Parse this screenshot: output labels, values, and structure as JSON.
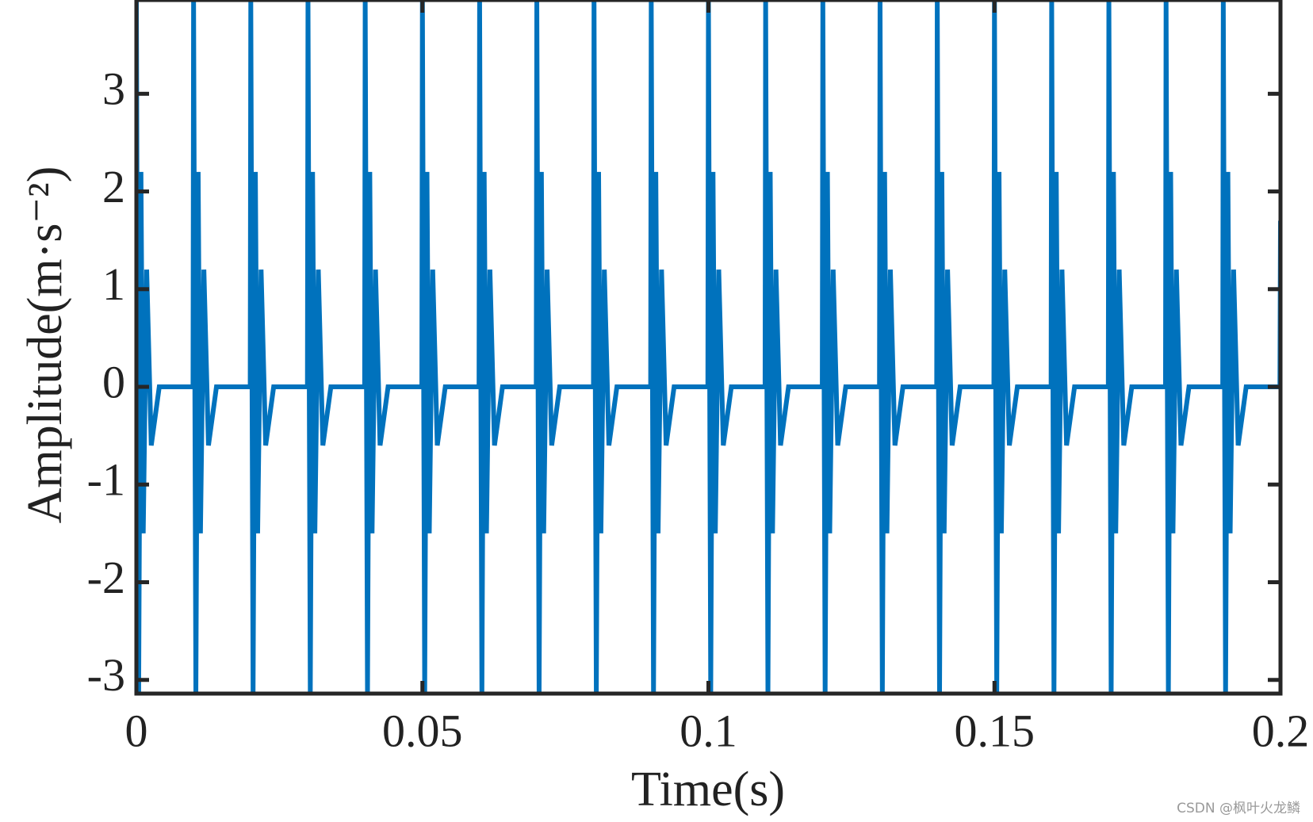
{
  "chart_data": {
    "type": "line",
    "x_label": "Time(s)",
    "y_label": "Amplitude(m·s⁻²)",
    "watermark": "CSDN @枫叶火龙鳞",
    "x": [
      0,
      0.0004,
      0.0008,
      0.0012,
      0.0018,
      0.0026,
      0.004,
      0.0099,
      0.01,
      0.0104,
      0.0108,
      0.0112,
      0.0118,
      0.0126,
      0.014,
      0.0199,
      0.02,
      0.0204,
      0.0208,
      0.0212,
      0.0218,
      0.0226,
      0.024,
      0.0299,
      0.03,
      0.0304,
      0.0308,
      0.0312,
      0.0318,
      0.0326,
      0.034,
      0.0399,
      0.04,
      0.0404,
      0.0408,
      0.0412,
      0.0418,
      0.0426,
      0.044,
      0.0499,
      0.05,
      0.0504,
      0.0508,
      0.0512,
      0.0518,
      0.0526,
      0.054,
      0.0599,
      0.06,
      0.0604,
      0.0608,
      0.0612,
      0.0618,
      0.0626,
      0.064,
      0.0699,
      0.07,
      0.0704,
      0.0708,
      0.0712,
      0.0718,
      0.0726,
      0.074,
      0.0799,
      0.08,
      0.0804,
      0.0808,
      0.0812,
      0.0818,
      0.0826,
      0.084,
      0.0899,
      0.09,
      0.0904,
      0.0908,
      0.0912,
      0.0918,
      0.0926,
      0.094,
      0.0999,
      0.1,
      0.1004,
      0.1008,
      0.1012,
      0.1018,
      0.1026,
      0.104,
      0.1099,
      0.11,
      0.1104,
      0.1108,
      0.1112,
      0.1118,
      0.1126,
      0.114,
      0.1199,
      0.12,
      0.1204,
      0.1208,
      0.1212,
      0.1218,
      0.1226,
      0.124,
      0.1299,
      0.13,
      0.1304,
      0.1308,
      0.1312,
      0.1318,
      0.1326,
      0.134,
      0.1399,
      0.14,
      0.1404,
      0.1408,
      0.1412,
      0.1418,
      0.1426,
      0.144,
      0.1499,
      0.15,
      0.1504,
      0.1508,
      0.1512,
      0.1518,
      0.1526,
      0.154,
      0.1599,
      0.16,
      0.1604,
      0.1608,
      0.1612,
      0.1618,
      0.1626,
      0.164,
      0.1699,
      0.17,
      0.1704,
      0.1708,
      0.1712,
      0.1718,
      0.1726,
      0.174,
      0.1799,
      0.18,
      0.1804,
      0.1808,
      0.1812,
      0.1818,
      0.1826,
      0.184,
      0.1899,
      0.19,
      0.1904,
      0.1908,
      0.1912,
      0.1918,
      0.1926,
      0.194,
      0.1999,
      0.2
    ],
    "series": [
      {
        "color": "#0072bd",
        "values": [
          3.96,
          -3.14,
          2.2,
          -1.5,
          1.2,
          -0.6,
          0,
          0,
          3.96,
          -3.14,
          2.2,
          -1.5,
          1.2,
          -0.6,
          0,
          0,
          3.96,
          -3.14,
          2.2,
          -1.5,
          1.2,
          -0.6,
          0,
          0,
          3.96,
          -3.14,
          2.2,
          -1.5,
          1.2,
          -0.6,
          0,
          0,
          3.96,
          -3.14,
          2.2,
          -1.5,
          1.2,
          -0.6,
          0,
          0,
          3.96,
          -3.14,
          2.2,
          -1.5,
          1.2,
          -0.6,
          0,
          0,
          3.96,
          -3.14,
          2.2,
          -1.5,
          1.2,
          -0.6,
          0,
          0,
          3.96,
          -3.14,
          2.2,
          -1.5,
          1.2,
          -0.6,
          0,
          0,
          3.96,
          -3.14,
          2.2,
          -1.5,
          1.2,
          -0.6,
          0,
          0,
          3.96,
          -3.14,
          2.2,
          -1.5,
          1.2,
          -0.6,
          0,
          0,
          3.96,
          -3.14,
          2.2,
          -1.5,
          1.2,
          -0.6,
          0,
          0,
          3.96,
          -3.14,
          2.2,
          -1.5,
          1.2,
          -0.6,
          0,
          0,
          3.96,
          -3.14,
          2.2,
          -1.5,
          1.2,
          -0.6,
          0,
          0,
          3.96,
          -3.14,
          2.2,
          -1.5,
          1.2,
          -0.6,
          0,
          0,
          3.96,
          -3.14,
          2.2,
          -1.5,
          1.2,
          -0.6,
          0,
          0,
          3.96,
          -3.14,
          2.2,
          -1.5,
          1.2,
          -0.6,
          0,
          0,
          3.96,
          -3.14,
          2.2,
          -1.5,
          1.2,
          -0.6,
          0,
          0,
          3.96,
          -3.14,
          2.2,
          -1.5,
          1.2,
          -0.6,
          0,
          0,
          3.96,
          -3.14,
          2.2,
          -1.5,
          1.2,
          -0.6,
          0,
          0,
          3.96,
          -3.14,
          2.2,
          -1.5,
          1.2,
          -0.6,
          0,
          0,
          1.7
        ]
      }
    ],
    "xlim": [
      0,
      0.2
    ],
    "xticks": [
      0,
      0.05,
      0.1,
      0.15,
      0.2
    ],
    "ylim": [
      -3.14,
      3.96
    ],
    "yticks": [
      -3,
      -2,
      -1,
      0,
      1,
      2,
      3
    ],
    "grid": false
  }
}
